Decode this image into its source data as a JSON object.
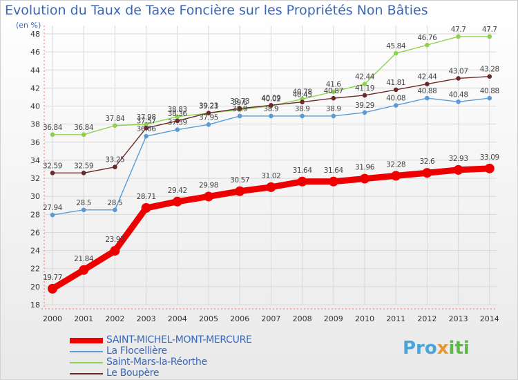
{
  "chart_data": {
    "type": "line",
    "title": "Evolution du Taux de Taxe Foncière sur les Propriétés Non Bâties",
    "ylabel": "(en %)",
    "xlabel": "",
    "ylim": [
      18,
      48
    ],
    "yticks": [
      "18",
      "20",
      "22",
      "24",
      "26",
      "28",
      "30",
      "32",
      "34",
      "36",
      "38",
      "40",
      "42",
      "44",
      "46",
      "48"
    ],
    "categories": [
      "2000",
      "2001",
      "2002",
      "2003",
      "2004",
      "2005",
      "2006",
      "2007",
      "2008",
      "2009",
      "2010",
      "2011",
      "2012",
      "2013",
      "2014"
    ],
    "grid": true,
    "series": [
      {
        "name": "Saint-Mars-la-Réorthe",
        "color": "#8fd14f",
        "values": [
          36.84,
          36.84,
          37.84,
          37.98,
          38.83,
          39.21,
          39.6,
          40.02,
          40.78,
          41.6,
          42.44,
          45.84,
          46.76,
          47.7,
          47.7
        ],
        "labels": [
          "36.84",
          "36.84",
          "37.84",
          "37.98",
          "38.83",
          "39.21",
          "39.6",
          "40.02",
          "40.78",
          "41.6",
          "42.44",
          "45.84",
          "46.76",
          "47.7",
          "47.7"
        ]
      },
      {
        "name": "Le Boupère",
        "color": "#6b2a2a",
        "values": [
          32.59,
          32.59,
          33.25,
          37.57,
          38.36,
          39.23,
          39.73,
          40.09,
          40.45,
          40.87,
          41.19,
          41.81,
          42.44,
          43.07,
          43.28
        ],
        "labels": [
          "32.59",
          "32.59",
          "33.25",
          "37.57",
          "38.36",
          "39.23",
          "39.73",
          "40.09",
          "40.45",
          "40.87",
          "41.19",
          "41.81",
          "42.44",
          "43.07",
          "43.28"
        ]
      },
      {
        "name": "La Flocellière",
        "color": "#5b9bd5",
        "values": [
          27.94,
          28.5,
          28.5,
          36.66,
          37.39,
          37.95,
          38.9,
          38.9,
          38.9,
          38.9,
          39.29,
          40.08,
          40.88,
          40.48,
          40.88
        ],
        "labels": [
          "27.94",
          "28.5",
          "28.5",
          "36.66",
          "37.39",
          "37.95",
          "38.9",
          "38.9",
          "38.9",
          "38.9",
          "39.29",
          "40.08",
          "40.88",
          "40.48",
          "40.88"
        ]
      },
      {
        "name": "SAINT-MICHEL-MONT-MERCURE",
        "color": "#ee0000",
        "values": [
          19.77,
          21.84,
          23.97,
          28.71,
          29.42,
          29.98,
          30.57,
          31.02,
          31.64,
          31.64,
          31.96,
          32.28,
          32.6,
          32.93,
          33.09
        ],
        "labels": [
          "19.77",
          "21.84",
          "23.97",
          "28.71",
          "29.42",
          "29.98",
          "30.57",
          "31.02",
          "31.64",
          "31.64",
          "31.96",
          "32.28",
          "32.6",
          "32.93",
          "33.09"
        ]
      }
    ]
  },
  "legend": {
    "items": [
      {
        "label": "SAINT-MICHEL-MONT-MERCURE",
        "color": "#ee0000"
      },
      {
        "label": "La Flocellière",
        "color": "#5b9bd5"
      },
      {
        "label": "Saint-Mars-la-Réorthe",
        "color": "#8fd14f"
      },
      {
        "label": "Le Boupère",
        "color": "#6b2a2a"
      }
    ]
  },
  "logo": {
    "part1": "Pro",
    "part2": "x",
    "part3": "iti"
  }
}
